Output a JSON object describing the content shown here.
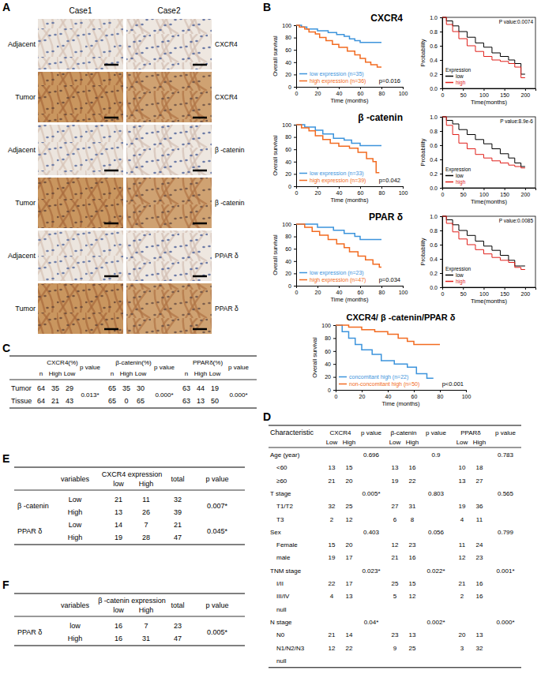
{
  "chart_data": [
    {
      "type": "line",
      "title": "CXCR4",
      "x_label": "Time (months)",
      "y_label": "Overall survival",
      "xlim": [
        0,
        100
      ],
      "ylim": [
        0,
        100
      ],
      "xticks": [
        0,
        20,
        40,
        60,
        80,
        100
      ],
      "yticks": [
        0,
        20,
        40,
        60,
        80,
        100
      ],
      "line_style": "step",
      "legend": "lower left",
      "annotation": "p=0.016",
      "series": [
        {
          "name": "low expression (n=35)",
          "color": "#3d94dc",
          "x": [
            0,
            5,
            10,
            20,
            30,
            38,
            45,
            50,
            55,
            60,
            80
          ],
          "values": [
            100,
            97,
            94,
            91,
            88,
            85,
            82,
            78,
            75,
            72,
            72
          ]
        },
        {
          "name": "high expression (n=36)",
          "color": "#f26b21",
          "x": [
            0,
            3,
            8,
            12,
            18,
            22,
            28,
            34,
            40,
            48,
            55,
            60,
            65,
            70,
            76,
            80
          ],
          "values": [
            100,
            97,
            94,
            89,
            86,
            80,
            75,
            69,
            64,
            58,
            52,
            46,
            40,
            36,
            32,
            32
          ]
        }
      ]
    },
    {
      "type": "line",
      "x_label": "Time(months)",
      "y_label": "Probability",
      "xlim": [
        0,
        225
      ],
      "ylim": [
        0,
        1
      ],
      "xticks": [
        0,
        50,
        100,
        150,
        200
      ],
      "yticks": [
        {
          "value": 0,
          "label": "0.0"
        },
        0.2,
        0.4,
        0.6,
        0.8,
        {
          "value": 1,
          "label": "1.0"
        }
      ],
      "line_style": "step",
      "legend": "lower left",
      "legend_title": "Expression",
      "annotation": "P value:0.0074",
      "series": [
        {
          "name": "low",
          "color": "#000000",
          "x": [
            0,
            10,
            25,
            40,
            60,
            80,
            100,
            120,
            140,
            160,
            175,
            190,
            200
          ],
          "values": [
            1,
            0.95,
            0.88,
            0.8,
            0.72,
            0.64,
            0.58,
            0.5,
            0.45,
            0.4,
            0.35,
            0.2,
            0.2
          ]
        },
        {
          "name": "high",
          "color": "#e0201b",
          "x": [
            0,
            10,
            25,
            40,
            60,
            80,
            100,
            120,
            140,
            160,
            175,
            190,
            200
          ],
          "values": [
            1,
            0.9,
            0.8,
            0.7,
            0.6,
            0.52,
            0.45,
            0.4,
            0.38,
            0.35,
            0.3,
            0.15,
            0.15
          ]
        }
      ]
    },
    {
      "type": "line",
      "title": "β -catenin",
      "x_label": "Time (months)",
      "y_label": "Overall survival",
      "xlim": [
        0,
        100
      ],
      "ylim": [
        0,
        100
      ],
      "xticks": [
        0,
        20,
        40,
        60,
        80,
        100
      ],
      "yticks": [
        0,
        20,
        40,
        60,
        80,
        100
      ],
      "line_style": "step",
      "legend": "lower left",
      "annotation": "p=0.042",
      "series": [
        {
          "name": "low expression (n=33)",
          "color": "#3d94dc",
          "x": [
            0,
            8,
            18,
            25,
            35,
            45,
            52,
            60,
            80
          ],
          "values": [
            100,
            96,
            91,
            85,
            78,
            75,
            70,
            66,
            66
          ]
        },
        {
          "name": "high expression (n=39)",
          "color": "#f26b21",
          "x": [
            0,
            5,
            12,
            18,
            25,
            32,
            40,
            50,
            58,
            66,
            72,
            75,
            78
          ],
          "values": [
            100,
            95,
            90,
            82,
            76,
            70,
            65,
            62,
            55,
            45,
            40,
            22,
            22
          ]
        }
      ]
    },
    {
      "type": "line",
      "x_label": "Time(months)",
      "y_label": "Probability",
      "xlim": [
        0,
        225
      ],
      "ylim": [
        0,
        1
      ],
      "xticks": [
        0,
        50,
        100,
        150,
        200
      ],
      "yticks": [
        {
          "value": 0,
          "label": "0.0"
        },
        0.2,
        0.4,
        0.6,
        0.8,
        {
          "value": 1,
          "label": "1.0"
        }
      ],
      "line_style": "step",
      "legend": "lower left",
      "legend_title": "Expression",
      "annotation": "P value:8.9e-6",
      "series": [
        {
          "name": "low",
          "color": "#000000",
          "x": [
            0,
            10,
            25,
            40,
            60,
            80,
            100,
            120,
            140,
            160,
            175,
            190,
            200
          ],
          "values": [
            1,
            0.95,
            0.9,
            0.82,
            0.75,
            0.68,
            0.62,
            0.55,
            0.48,
            0.42,
            0.35,
            0.3,
            0.3
          ]
        },
        {
          "name": "high",
          "color": "#e0201b",
          "x": [
            0,
            10,
            25,
            40,
            60,
            80,
            100,
            120,
            140,
            160,
            175,
            190,
            200
          ],
          "values": [
            1,
            0.88,
            0.75,
            0.63,
            0.55,
            0.47,
            0.42,
            0.38,
            0.35,
            0.32,
            0.3,
            0.28,
            0.28
          ]
        }
      ]
    },
    {
      "type": "line",
      "title": "PPAR δ",
      "x_label": "Time (months)",
      "y_label": "Overall survival",
      "xlim": [
        0,
        100
      ],
      "ylim": [
        0,
        100
      ],
      "xticks": [
        0,
        20,
        40,
        60,
        80,
        100
      ],
      "yticks": [
        0,
        20,
        40,
        60,
        80,
        100
      ],
      "line_style": "step",
      "legend": "lower left",
      "annotation": "p=0.034",
      "series": [
        {
          "name": "low expression (n=23)",
          "color": "#3d94dc",
          "x": [
            0,
            20,
            35,
            45,
            55,
            60,
            80
          ],
          "values": [
            100,
            95,
            90,
            85,
            80,
            75,
            75
          ]
        },
        {
          "name": "high expression (n=47)",
          "color": "#f26b21",
          "x": [
            0,
            8,
            15,
            22,
            30,
            38,
            45,
            50,
            58,
            65,
            72,
            78,
            80
          ],
          "values": [
            100,
            95,
            88,
            82,
            75,
            68,
            62,
            55,
            48,
            42,
            35,
            30,
            30
          ]
        }
      ]
    },
    {
      "type": "line",
      "x_label": "Time(months)",
      "y_label": "Probability",
      "xlim": [
        0,
        225
      ],
      "ylim": [
        0,
        1
      ],
      "xticks": [
        0,
        50,
        100,
        150,
        200
      ],
      "yticks": [
        {
          "value": 0,
          "label": "0.0"
        },
        0.2,
        0.4,
        0.6,
        0.8,
        {
          "value": 1,
          "label": "1.0"
        }
      ],
      "line_style": "step",
      "legend": "lower left",
      "legend_title": "Expression",
      "annotation": "P value:0.0085",
      "series": [
        {
          "name": "low",
          "color": "#000000",
          "x": [
            0,
            10,
            25,
            40,
            60,
            80,
            100,
            120,
            140,
            160,
            175,
            190,
            200
          ],
          "values": [
            1,
            0.95,
            0.88,
            0.8,
            0.73,
            0.65,
            0.58,
            0.52,
            0.45,
            0.38,
            0.3,
            0.3,
            0.3
          ]
        },
        {
          "name": "high",
          "color": "#e0201b",
          "x": [
            0,
            10,
            25,
            40,
            60,
            80,
            100,
            120,
            140,
            160,
            175,
            190,
            200
          ],
          "values": [
            1,
            0.9,
            0.78,
            0.68,
            0.6,
            0.53,
            0.47,
            0.42,
            0.38,
            0.35,
            0.28,
            0.25,
            0.25
          ]
        }
      ]
    },
    {
      "type": "line",
      "title": "CXCR4/ β -catenin/PPAR δ",
      "x_label": "Time (months)",
      "y_label": "Overall survival",
      "xlim": [
        0,
        100
      ],
      "ylim": [
        0,
        100
      ],
      "xticks": [
        0,
        20,
        40,
        60,
        80,
        100
      ],
      "yticks": [
        0,
        20,
        40,
        60,
        80,
        100
      ],
      "line_style": "step",
      "legend": "lower left",
      "annotation": "p<0.001",
      "series": [
        {
          "name": "concomitant high (n=22)",
          "color": "#3d94dc",
          "x": [
            0,
            5,
            10,
            15,
            20,
            28,
            35,
            45,
            55,
            62,
            70,
            75
          ],
          "values": [
            100,
            90,
            80,
            70,
            62,
            55,
            45,
            40,
            35,
            25,
            18,
            18
          ]
        },
        {
          "name": "non-concomitant high (n=50)",
          "color": "#f26b21",
          "x": [
            0,
            10,
            20,
            30,
            40,
            48,
            55,
            60,
            80
          ],
          "values": [
            100,
            97,
            93,
            90,
            86,
            80,
            75,
            70,
            70
          ]
        }
      ]
    }
  ],
  "panel_labels": [
    "A",
    "B",
    "C",
    "D",
    "E",
    "F"
  ],
  "ihc": {
    "columns": [
      "Case1",
      "Case2"
    ],
    "rows": [
      {
        "tissue": "Adjacent",
        "marker": "CXCR4"
      },
      {
        "tissue": "Tumor",
        "marker": "CXCR4"
      },
      {
        "tissue": "Adjacent",
        "marker": "β -catenin"
      },
      {
        "tissue": "Tumor",
        "marker": "β -catenin"
      },
      {
        "tissue": "Adjacent",
        "marker": "PPAR δ"
      },
      {
        "tissue": "Tumor",
        "marker": "PPAR δ"
      }
    ]
  },
  "tables": [
    {
      "header_top": [
        "CXCR4(%)",
        "p value",
        "β-catenin(%)",
        "p value",
        "PPARδ(%)",
        "p value"
      ],
      "header_sub": [
        "n",
        "High",
        "Low",
        "n",
        "High",
        "Low",
        "n",
        "High",
        "Low"
      ],
      "rows": [
        {
          "label": "Tumor",
          "cells": [
            64,
            35,
            29,
            65,
            35,
            30,
            63,
            44,
            19
          ]
        },
        {
          "label": "Tissue",
          "cells": [
            64,
            21,
            43,
            65,
            0,
            65,
            63,
            13,
            50
          ]
        }
      ],
      "p_values": [
        "0.013*",
        "0.000*",
        "0.000*"
      ]
    },
    {
      "header_top": [
        "Characteristic",
        "CXCR4",
        "p value",
        "β-catenin",
        "p value",
        "PPARδ",
        "p value"
      ],
      "header_sub": [
        "Low",
        "High",
        "Low",
        "High",
        "Low",
        "High"
      ],
      "rows": [
        {
          "label": "Age (year)",
          "cells": [
            null,
            null,
            "0.696",
            null,
            null,
            "0.9",
            null,
            null,
            "0.783"
          ]
        },
        {
          "label": "<60",
          "cells": [
            13,
            15,
            null,
            13,
            16,
            null,
            10,
            18,
            null
          ]
        },
        {
          "label": "≥60",
          "cells": [
            21,
            20,
            null,
            19,
            22,
            null,
            13,
            27,
            null
          ]
        },
        {
          "label": "T stage",
          "cells": [
            null,
            null,
            "0.005*",
            null,
            null,
            "0.803",
            null,
            null,
            "0.565"
          ]
        },
        {
          "label": "T1/T2",
          "cells": [
            32,
            25,
            null,
            27,
            31,
            null,
            19,
            36,
            null
          ]
        },
        {
          "label": "T3",
          "cells": [
            2,
            12,
            null,
            6,
            8,
            null,
            4,
            11,
            null
          ]
        },
        {
          "label": "Sex",
          "cells": [
            null,
            null,
            "0.403",
            null,
            null,
            "0.056",
            null,
            null,
            "0.799"
          ]
        },
        {
          "label": "Female",
          "cells": [
            15,
            20,
            null,
            12,
            23,
            null,
            11,
            24,
            null
          ]
        },
        {
          "label": "male",
          "cells": [
            19,
            17,
            null,
            21,
            16,
            null,
            12,
            23,
            null
          ]
        },
        {
          "label": "TNM stage",
          "cells": [
            null,
            null,
            "0.023*",
            null,
            null,
            "0.022*",
            null,
            null,
            "0.001*"
          ]
        },
        {
          "label": "I/II",
          "cells": [
            22,
            17,
            null,
            25,
            15,
            null,
            21,
            16,
            null
          ]
        },
        {
          "label": "III/IV",
          "cells": [
            4,
            13,
            null,
            5,
            12,
            null,
            2,
            16,
            null
          ]
        },
        {
          "label": "null",
          "cells": [
            null,
            null,
            null,
            null,
            null,
            null,
            null,
            null,
            null
          ]
        },
        {
          "label": "N stage",
          "cells": [
            null,
            null,
            "0.04*",
            null,
            null,
            "0.002*",
            null,
            null,
            "0.000*"
          ]
        },
        {
          "label": "N0",
          "cells": [
            21,
            14,
            null,
            23,
            13,
            null,
            20,
            13,
            null
          ]
        },
        {
          "label": "N1/N2/N3",
          "cells": [
            12,
            22,
            null,
            9,
            25,
            null,
            3,
            32,
            null
          ]
        },
        {
          "label": "null",
          "cells": [
            null,
            null,
            null,
            null,
            null,
            null,
            null,
            null,
            null
          ]
        }
      ]
    },
    {
      "header_top": [
        "variables",
        "CXCR4 expression",
        "total",
        "p value"
      ],
      "header_sub": [
        "low",
        "High"
      ],
      "rows": [
        {
          "label": "β -catenin",
          "variable": "Low",
          "cells": [
            21,
            11,
            32
          ],
          "p": "0.007*"
        },
        {
          "label": null,
          "variable": "High",
          "cells": [
            13,
            26,
            39
          ],
          "p": null
        },
        {
          "label": "PPAR δ",
          "variable": "Low",
          "cells": [
            14,
            7,
            21
          ],
          "p": "0.045*"
        },
        {
          "label": null,
          "variable": "High",
          "cells": [
            19,
            28,
            47
          ],
          "p": null
        }
      ]
    },
    {
      "header_top": [
        "variables",
        "β -catenin expression",
        "total",
        "p value"
      ],
      "header_sub": [
        "low",
        "High"
      ],
      "rows": [
        {
          "label": "PPAR δ",
          "variable": "low",
          "cells": [
            16,
            7,
            23
          ],
          "p": "0.005*"
        },
        {
          "label": null,
          "variable": "High",
          "cells": [
            16,
            31,
            47
          ],
          "p": null
        }
      ]
    }
  ]
}
